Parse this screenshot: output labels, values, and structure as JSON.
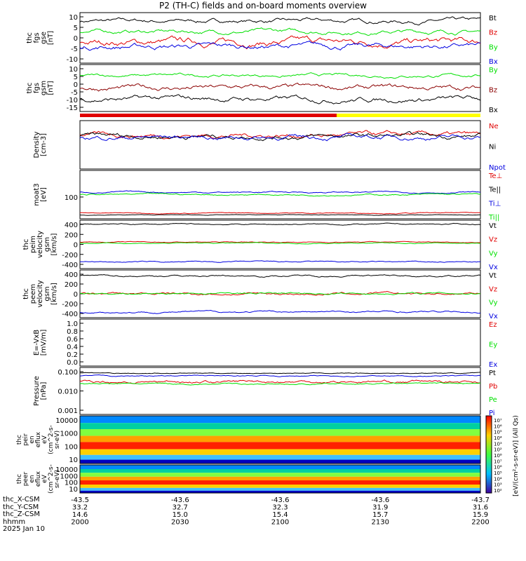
{
  "title": "P2 (TH-C) fields and on-board moments overview",
  "colors": {
    "black": "#000000",
    "red": "#e00000",
    "green": "#00e000",
    "blue": "#0000e0",
    "darkred": "#8b0000",
    "yellow": "#ffff00"
  },
  "panels": [
    {
      "id": "fgs_gse",
      "ylabel": [
        "thc",
        "fgs",
        "gse",
        "[nT]"
      ],
      "ylim": [
        -12,
        12
      ],
      "ticks": [
        "10",
        "5",
        "0",
        "-5",
        "-10"
      ],
      "series": [
        {
          "name": "Bt",
          "color": "black",
          "base": 8,
          "amp": 3
        },
        {
          "name": "Bz",
          "color": "red",
          "base": -2,
          "amp": 5
        },
        {
          "name": "By",
          "color": "green",
          "base": 3,
          "amp": 3
        },
        {
          "name": "Bx",
          "color": "blue",
          "base": -4,
          "amp": 4
        }
      ]
    },
    {
      "id": "fgs_gsm",
      "ylabel": [
        "thc",
        "fgs",
        "gsm",
        "[nT]"
      ],
      "ylim": [
        -18,
        12
      ],
      "ticks": [
        "10",
        "5",
        "0",
        "-5",
        "-10",
        "-15"
      ],
      "series": [
        {
          "name": "By",
          "color": "green",
          "base": 5,
          "amp": 3
        },
        {
          "name": "Bz",
          "color": "darkred",
          "base": -3,
          "amp": 5
        },
        {
          "name": "Bx",
          "color": "black",
          "base": -10,
          "amp": 5
        }
      ]
    },
    {
      "id": "density",
      "ylabel": [
        "Density",
        "[cm-3]"
      ],
      "ylim": [
        0,
        1
      ],
      "ticks": [],
      "series": [
        {
          "name": "Ne",
          "color": "red",
          "base": 0.7,
          "amp": 0.15
        },
        {
          "name": "Ni",
          "color": "black",
          "base": 0.68,
          "amp": 0.15
        },
        {
          "name": "Npot",
          "color": "blue",
          "base": 0.66,
          "amp": 0.15
        }
      ]
    },
    {
      "id": "temperature",
      "ylabel": [
        "moat3",
        "[eV]"
      ],
      "ylim": [
        0,
        1
      ],
      "ticks": [
        "100"
      ],
      "series": [
        {
          "name": "Te⊥",
          "color": "red",
          "base": 0.12,
          "amp": 0.03
        },
        {
          "name": "Te||",
          "color": "black",
          "base": 0.08,
          "amp": 0.02
        },
        {
          "name": "Ti⊥",
          "color": "blue",
          "base": 0.55,
          "amp": 0.05
        },
        {
          "name": "Ti||",
          "color": "green",
          "base": 0.5,
          "amp": 0.05
        }
      ]
    },
    {
      "id": "peim_velocity",
      "ylabel": [
        "thc",
        "peim",
        "velocity",
        "gsm",
        "[km/s]"
      ],
      "ylim": [
        -500,
        450
      ],
      "ticks": [
        "400",
        "200",
        "0",
        "-200",
        "-400"
      ],
      "series": [
        {
          "name": "Vt",
          "color": "black",
          "base": 370,
          "amp": 40
        },
        {
          "name": "Vz",
          "color": "red",
          "base": 20,
          "amp": 30
        },
        {
          "name": "Vy",
          "color": "green",
          "base": 0,
          "amp": 30
        },
        {
          "name": "Vx",
          "color": "blue",
          "base": -370,
          "amp": 40
        }
      ]
    },
    {
      "id": "peem_velocity",
      "ylabel": [
        "thc",
        "peem",
        "velocity",
        "gsm",
        "[km/s]"
      ],
      "ylim": [
        -500,
        500
      ],
      "ticks": [
        "400",
        "200",
        "0",
        "-200",
        "-400"
      ],
      "series": [
        {
          "name": "Vt",
          "color": "black",
          "base": 380,
          "amp": 60
        },
        {
          "name": "Vz",
          "color": "red",
          "base": 0,
          "amp": 80
        },
        {
          "name": "Vy",
          "color": "green",
          "base": 10,
          "amp": 60
        },
        {
          "name": "Vx",
          "color": "blue",
          "base": -380,
          "amp": 60
        }
      ]
    },
    {
      "id": "efield",
      "ylabel": [
        "E=-VxB",
        "[mV/m]"
      ],
      "ylim": [
        0,
        1
      ],
      "ticks": [
        "1.0",
        "0.8",
        "0.6",
        "0.4",
        "0.2",
        "0.0"
      ],
      "series": [
        {
          "name": "Ez",
          "color": "red"
        },
        {
          "name": "Ey",
          "color": "green"
        },
        {
          "name": "Ex",
          "color": "blue"
        }
      ]
    },
    {
      "id": "pressure",
      "ylabel": [
        "Pressure",
        "[nPa]"
      ],
      "ylim": [
        0,
        1
      ],
      "ticks": [
        "0.100",
        "0.010",
        "0.001"
      ],
      "series": [
        {
          "name": "Pt",
          "color": "black",
          "base": 0.88,
          "amp": 0.03
        },
        {
          "name": "Pb",
          "color": "red",
          "base": 0.7,
          "amp": 0.1
        },
        {
          "name": "Pe",
          "color": "green",
          "base": 0.65,
          "amp": 0.05
        },
        {
          "name": "Pi",
          "color": "blue",
          "base": 0.82,
          "amp": 0.04
        }
      ]
    }
  ],
  "spectrograms": [
    {
      "id": "peir",
      "ylabel": [
        "thc",
        "peir",
        "en",
        "eflux",
        "eV",
        "(cm^2-s-",
        "sr-eV)"
      ],
      "ticks": [
        "10000",
        "1000",
        "100",
        "10"
      ]
    },
    {
      "id": "peer",
      "ylabel": [
        "thc",
        "peer",
        "en",
        "eflux",
        "eV",
        "(cm^2-s-",
        "sr-eV)"
      ],
      "ticks": [
        "10000",
        "1000",
        "100",
        "10"
      ]
    }
  ],
  "colorbar": {
    "label": "[eV/(cm²-s-sr-eV)] (All Qs)",
    "ticks": [
      "10⁷",
      "10⁶",
      "10⁵",
      "10⁴",
      "10³",
      "10²",
      "10⁸",
      "10⁷",
      "10⁶",
      "10⁵",
      "10⁴",
      "10³",
      "10²"
    ]
  },
  "footer": {
    "rows": [
      {
        "label": "thc_X-CSM",
        "values": [
          "-43.5",
          "-43.6",
          "-43.6",
          "-43.6",
          "-43.7"
        ]
      },
      {
        "label": "thc_Y-CSM",
        "values": [
          "33.2",
          "32.7",
          "32.3",
          "31.9",
          "31.6"
        ]
      },
      {
        "label": "thc_Z-CSM",
        "values": [
          "14.6",
          "15.0",
          "15.4",
          "15.7",
          "15.9"
        ]
      },
      {
        "label": "hhmm",
        "values": [
          "2000",
          "2030",
          "2100",
          "2130",
          "2200"
        ]
      }
    ],
    "date": "2025 Jan 10"
  },
  "chart_data": {
    "type": "line",
    "title": "P2 (TH-C) fields and on-board moments overview",
    "x_ticks": [
      "2000",
      "2030",
      "2100",
      "2130",
      "2200"
    ],
    "date": "2025 Jan 10"
  }
}
